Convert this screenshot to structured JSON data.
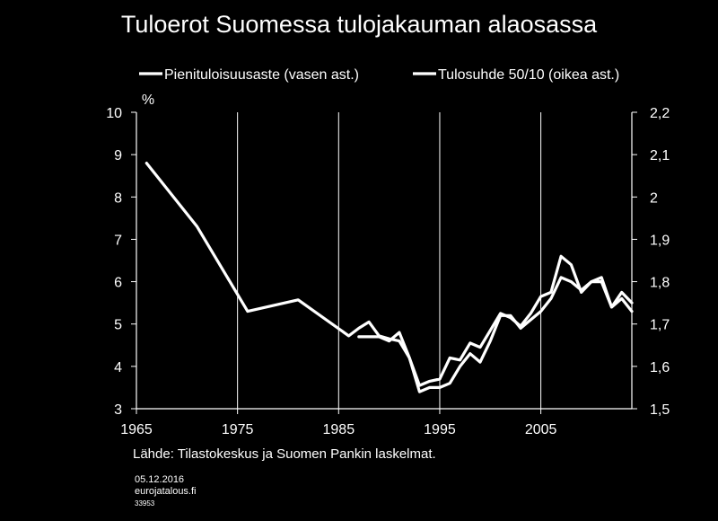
{
  "colors": {
    "background": "#000000",
    "text": "#ffffff",
    "series": "#ffffff",
    "grid": "#ffffff"
  },
  "footer": {
    "source": "Lähde: Tilastokeskus ja Suomen Pankin laskelmat.",
    "date": "05.12.2016",
    "site": "eurojatalous.fi",
    "code": "33953"
  },
  "chart_data": {
    "type": "line",
    "title": "Tuloerot Suomessa tulojakauman alaosassa",
    "xlabel": "",
    "ylabel": "%",
    "ylabel_right": "",
    "xlim": [
      1965,
      2014
    ],
    "ylim": [
      3,
      10
    ],
    "ylim_right": [
      1.5,
      2.2
    ],
    "x_ticks": [
      1965,
      1975,
      1985,
      1995,
      2005
    ],
    "y_ticks": [
      "3",
      "4",
      "5",
      "6",
      "7",
      "8",
      "9",
      "10"
    ],
    "y_ticks_right": [
      "1,5",
      "1,6",
      "1,7",
      "1,8",
      "1,9",
      "2",
      "2,1",
      "2,2"
    ],
    "grid": "vertical",
    "legend_position": "top",
    "series": [
      {
        "name": "Pienituloisuusaste (vasen ast.)",
        "axis": "left",
        "x": [
          1966,
          1971,
          1976,
          1981,
          1986,
          1987,
          1988,
          1989,
          1990,
          1991,
          1992,
          1993,
          1994,
          1995,
          1996,
          1997,
          1998,
          1999,
          2000,
          2001,
          2002,
          2003,
          2004,
          2005,
          2006,
          2007,
          2008,
          2009,
          2010,
          2011,
          2012,
          2013,
          2014
        ],
        "values": [
          8.8,
          7.3,
          5.3,
          5.57,
          4.72,
          4.9,
          5.05,
          4.72,
          4.65,
          4.6,
          4.2,
          3.55,
          3.65,
          3.7,
          4.2,
          4.15,
          4.55,
          4.45,
          4.85,
          5.25,
          5.15,
          4.95,
          5.25,
          5.65,
          5.75,
          6.6,
          6.4,
          5.75,
          6.0,
          6.1,
          5.4,
          5.75,
          5.5
        ]
      },
      {
        "name": "Tulosuhde 50/10 (oikea ast.)",
        "axis": "right",
        "x": [
          1987,
          1988,
          1989,
          1990,
          1991,
          1992,
          1993,
          1994,
          1995,
          1996,
          1997,
          1998,
          1999,
          2000,
          2001,
          2002,
          2003,
          2004,
          2005,
          2006,
          2007,
          2008,
          2009,
          2010,
          2011,
          2012,
          2013,
          2014
        ],
        "values": [
          1.67,
          1.67,
          1.67,
          1.66,
          1.68,
          1.62,
          1.54,
          1.55,
          1.55,
          1.56,
          1.6,
          1.63,
          1.61,
          1.66,
          1.72,
          1.72,
          1.69,
          1.71,
          1.73,
          1.76,
          1.81,
          1.8,
          1.78,
          1.8,
          1.8,
          1.74,
          1.76,
          1.73
        ]
      }
    ]
  }
}
